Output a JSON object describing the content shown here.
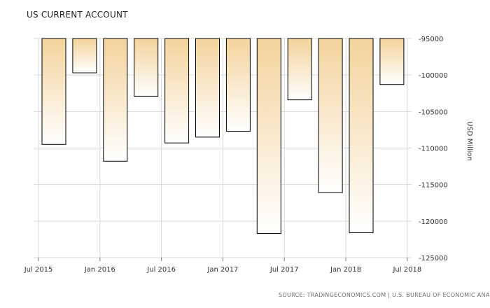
{
  "chart_data": {
    "type": "bar",
    "title": "US CURRENT ACCOUNT",
    "ylabel": "USD Million",
    "xlabel": "",
    "categories": [
      "2015 Q3",
      "2015 Q4",
      "2016 Q1",
      "2016 Q2",
      "2016 Q3",
      "2016 Q4",
      "2017 Q1",
      "2017 Q2",
      "2017 Q3",
      "2017 Q4",
      "2018 Q1",
      "2018 Q2"
    ],
    "values": [
      -109500,
      -99700,
      -111800,
      -102900,
      -109300,
      -108500,
      -107700,
      -121700,
      -103400,
      -116100,
      -121600,
      -101300
    ],
    "ylim": [
      -125000,
      -95000
    ],
    "y_ticks": [
      -95000,
      -100000,
      -105000,
      -110000,
      -115000,
      -120000,
      -125000
    ],
    "y_tick_labels": [
      "-95000",
      "-100000",
      "-105000",
      "-110000",
      "-115000",
      "-120000",
      "-125000"
    ],
    "x_tick_labels": [
      {
        "label": "Jul 2015",
        "at": 0
      },
      {
        "label": "Jan 2016",
        "at": 2
      },
      {
        "label": "Jul 2016",
        "at": 4
      },
      {
        "label": "Jan 2017",
        "at": 6
      },
      {
        "label": "Jul 2017",
        "at": 8
      },
      {
        "label": "Jan 2018",
        "at": 10
      },
      {
        "label": "Jul 2018",
        "at": 12
      }
    ],
    "grid": true,
    "colors": {
      "bar_top": "#f3d39c",
      "bar_bottom": "#ffffff",
      "bar_edge": "#000000",
      "grid": "#d9d9d9"
    }
  },
  "source": "SOURCE: TRADINGECONOMICS.COM | U.S. BUREAU OF ECONOMIC ANALYSIS"
}
